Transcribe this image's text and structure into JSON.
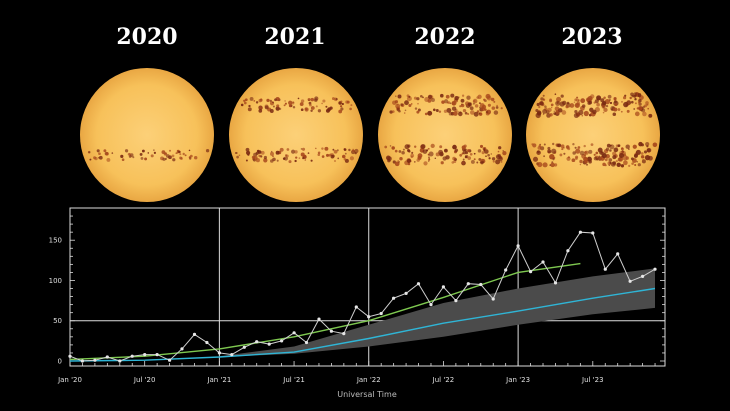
{
  "years": [
    "2020",
    "2021",
    "2022",
    "2023"
  ],
  "chart_data": {
    "type": "line",
    "xlabel": "Universal Time",
    "ylabel": "",
    "x_tick_labels": [
      "Jan '20",
      "Jul '20",
      "Jan '21",
      "Jul '21",
      "Jan '22",
      "Jul '22",
      "Jan '23",
      "Jul '23"
    ],
    "y_tick_labels": [
      "0",
      "50",
      "100",
      "150"
    ],
    "ylim": [
      0,
      190
    ],
    "xlim": [
      "2020-01",
      "2023-12"
    ],
    "grid": true,
    "series": [
      {
        "kind": "observed-monthly",
        "color": "#cccccc",
        "x": [
          "2020-01",
          "2020-02",
          "2020-03",
          "2020-04",
          "2020-05",
          "2020-06",
          "2020-07",
          "2020-08",
          "2020-09",
          "2020-10",
          "2020-11",
          "2020-12",
          "2021-01",
          "2021-02",
          "2021-03",
          "2021-04",
          "2021-05",
          "2021-06",
          "2021-07",
          "2021-08",
          "2021-09",
          "2021-10",
          "2021-11",
          "2021-12",
          "2022-01",
          "2022-02",
          "2022-03",
          "2022-04",
          "2022-05",
          "2022-06",
          "2022-07",
          "2022-08",
          "2022-09",
          "2022-10",
          "2022-11",
          "2022-12",
          "2023-01",
          "2023-02",
          "2023-03",
          "2023-04",
          "2023-05",
          "2023-06",
          "2023-07",
          "2023-08",
          "2023-09",
          "2023-10",
          "2023-11",
          "2023-12"
        ],
        "values": [
          6,
          0,
          1,
          5,
          0,
          6,
          8,
          8,
          1,
          15,
          33,
          23,
          10,
          8,
          17,
          24,
          21,
          25,
          35,
          23,
          52,
          37,
          34,
          67,
          55,
          59,
          78,
          84,
          96,
          70,
          92,
          75,
          96,
          95,
          77,
          113,
          143,
          111,
          123,
          97,
          137,
          160,
          159,
          114,
          133,
          99,
          105,
          114
        ]
      },
      {
        "kind": "smoothed-observed",
        "color": "#7ec850",
        "x": [
          "2020-01",
          "2020-07",
          "2021-01",
          "2021-07",
          "2022-01",
          "2022-07",
          "2023-01",
          "2023-06"
        ],
        "values": [
          2,
          6,
          15,
          30,
          50,
          79,
          110,
          121
        ]
      },
      {
        "kind": "predicted",
        "color": "#2fb5d6",
        "x": [
          "2020-01",
          "2020-07",
          "2021-01",
          "2021-07",
          "2022-01",
          "2022-07",
          "2023-01",
          "2023-07",
          "2023-12"
        ],
        "values": [
          0,
          1,
          5,
          11,
          28,
          47,
          62,
          78,
          90
        ]
      },
      {
        "kind": "prediction-range",
        "color": "#5a5a5a",
        "x": [
          "2021-01",
          "2021-07",
          "2022-01",
          "2022-07",
          "2023-01",
          "2023-07",
          "2023-12"
        ],
        "upper": [
          6,
          18,
          45,
          72,
          90,
          105,
          115
        ],
        "lower": [
          5,
          9,
          18,
          30,
          45,
          58,
          66
        ]
      }
    ]
  }
}
